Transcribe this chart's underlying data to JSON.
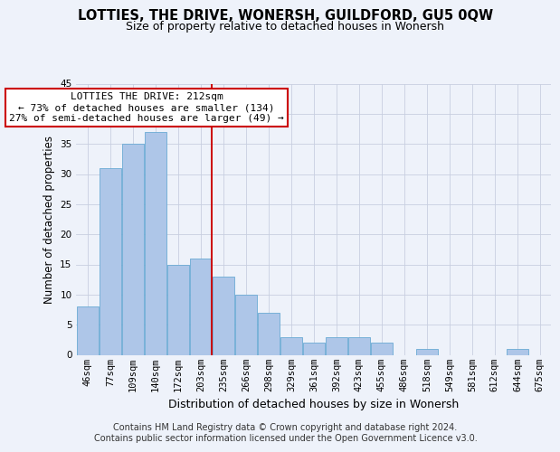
{
  "title1": "LOTTIES, THE DRIVE, WONERSH, GUILDFORD, GU5 0QW",
  "title2": "Size of property relative to detached houses in Wonersh",
  "xlabel": "Distribution of detached houses by size in Wonersh",
  "ylabel": "Number of detached properties",
  "categories": [
    "46sqm",
    "77sqm",
    "109sqm",
    "140sqm",
    "172sqm",
    "203sqm",
    "235sqm",
    "266sqm",
    "298sqm",
    "329sqm",
    "361sqm",
    "392sqm",
    "423sqm",
    "455sqm",
    "486sqm",
    "518sqm",
    "549sqm",
    "581sqm",
    "612sqm",
    "644sqm",
    "675sqm"
  ],
  "values": [
    8,
    31,
    35,
    37,
    15,
    16,
    13,
    10,
    7,
    3,
    2,
    3,
    3,
    2,
    0,
    1,
    0,
    0,
    0,
    1,
    0
  ],
  "bar_color": "#aec6e8",
  "bar_edge_color": "#6aaad4",
  "background_color": "#eef2fa",
  "grid_color": "#c8cfe0",
  "vline_x_index": 5.5,
  "vline_color": "#cc0000",
  "annotation_text": "LOTTIES THE DRIVE: 212sqm\n← 73% of detached houses are smaller (134)\n27% of semi-detached houses are larger (49) →",
  "annotation_box_color": "#ffffff",
  "annotation_box_edge": "#cc0000",
  "ylim": [
    0,
    45
  ],
  "yticks": [
    0,
    5,
    10,
    15,
    20,
    25,
    30,
    35,
    40,
    45
  ],
  "footer": "Contains HM Land Registry data © Crown copyright and database right 2024.\nContains public sector information licensed under the Open Government Licence v3.0.",
  "footer_fontsize": 7,
  "title1_fontsize": 10.5,
  "title2_fontsize": 9,
  "xlabel_fontsize": 9,
  "ylabel_fontsize": 8.5,
  "tick_fontsize": 7.5,
  "annot_fontsize": 8
}
